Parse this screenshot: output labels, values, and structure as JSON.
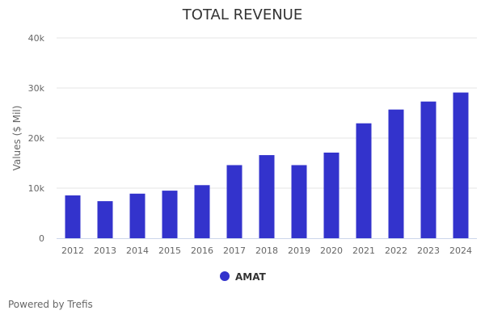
{
  "chart_data": {
    "type": "bar",
    "title": "TOTAL REVENUE",
    "xlabel": "",
    "ylabel": "Values ($ Mil)",
    "ylim": [
      0,
      40000
    ],
    "yticks": [
      0,
      10000,
      20000,
      30000,
      40000
    ],
    "ytick_labels": [
      "0",
      "10k",
      "20k",
      "30k",
      "40k"
    ],
    "grid": true,
    "categories": [
      "2012",
      "2013",
      "2014",
      "2015",
      "2016",
      "2017",
      "2018",
      "2019",
      "2020",
      "2021",
      "2022",
      "2023",
      "2024"
    ],
    "series": [
      {
        "name": "AMAT",
        "color": "#3333cc",
        "values": [
          8550,
          7400,
          8900,
          9500,
          10600,
          14600,
          16600,
          14600,
          17100,
          22950,
          25700,
          27300,
          29100
        ]
      }
    ],
    "legend_position": "bottom-center"
  },
  "credit": "Powered by Trefis"
}
